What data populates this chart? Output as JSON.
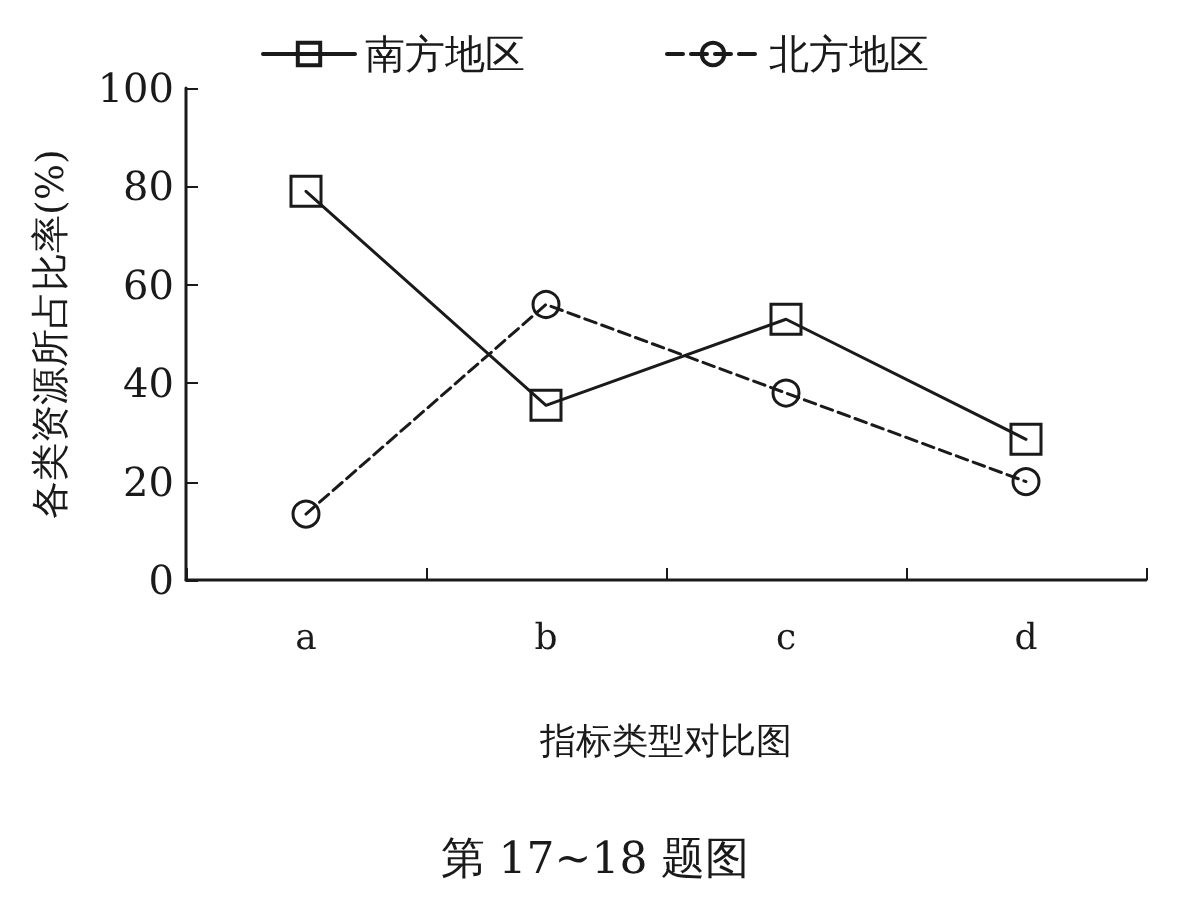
{
  "chart_data": {
    "type": "line",
    "title": "第 17~18 题图",
    "xlabel": "指标类型对比图",
    "ylabel": "各类资源所占比率(%)",
    "categories": [
      "a",
      "b",
      "c",
      "d"
    ],
    "series": [
      {
        "name": "南方地区",
        "color": "#1a1a1a",
        "marker": "square",
        "line_style": "solid",
        "values": [
          79,
          35.5,
          53,
          28.6
        ]
      },
      {
        "name": "北方地区",
        "color": "#1a1a1a",
        "marker": "circle",
        "line_style": "dashed",
        "values": [
          13.4,
          56,
          38,
          20
        ]
      }
    ],
    "ylim": [
      0,
      100
    ],
    "yticks": [
      0,
      20,
      40,
      60,
      80,
      100
    ],
    "grid": false,
    "legend": "top"
  }
}
